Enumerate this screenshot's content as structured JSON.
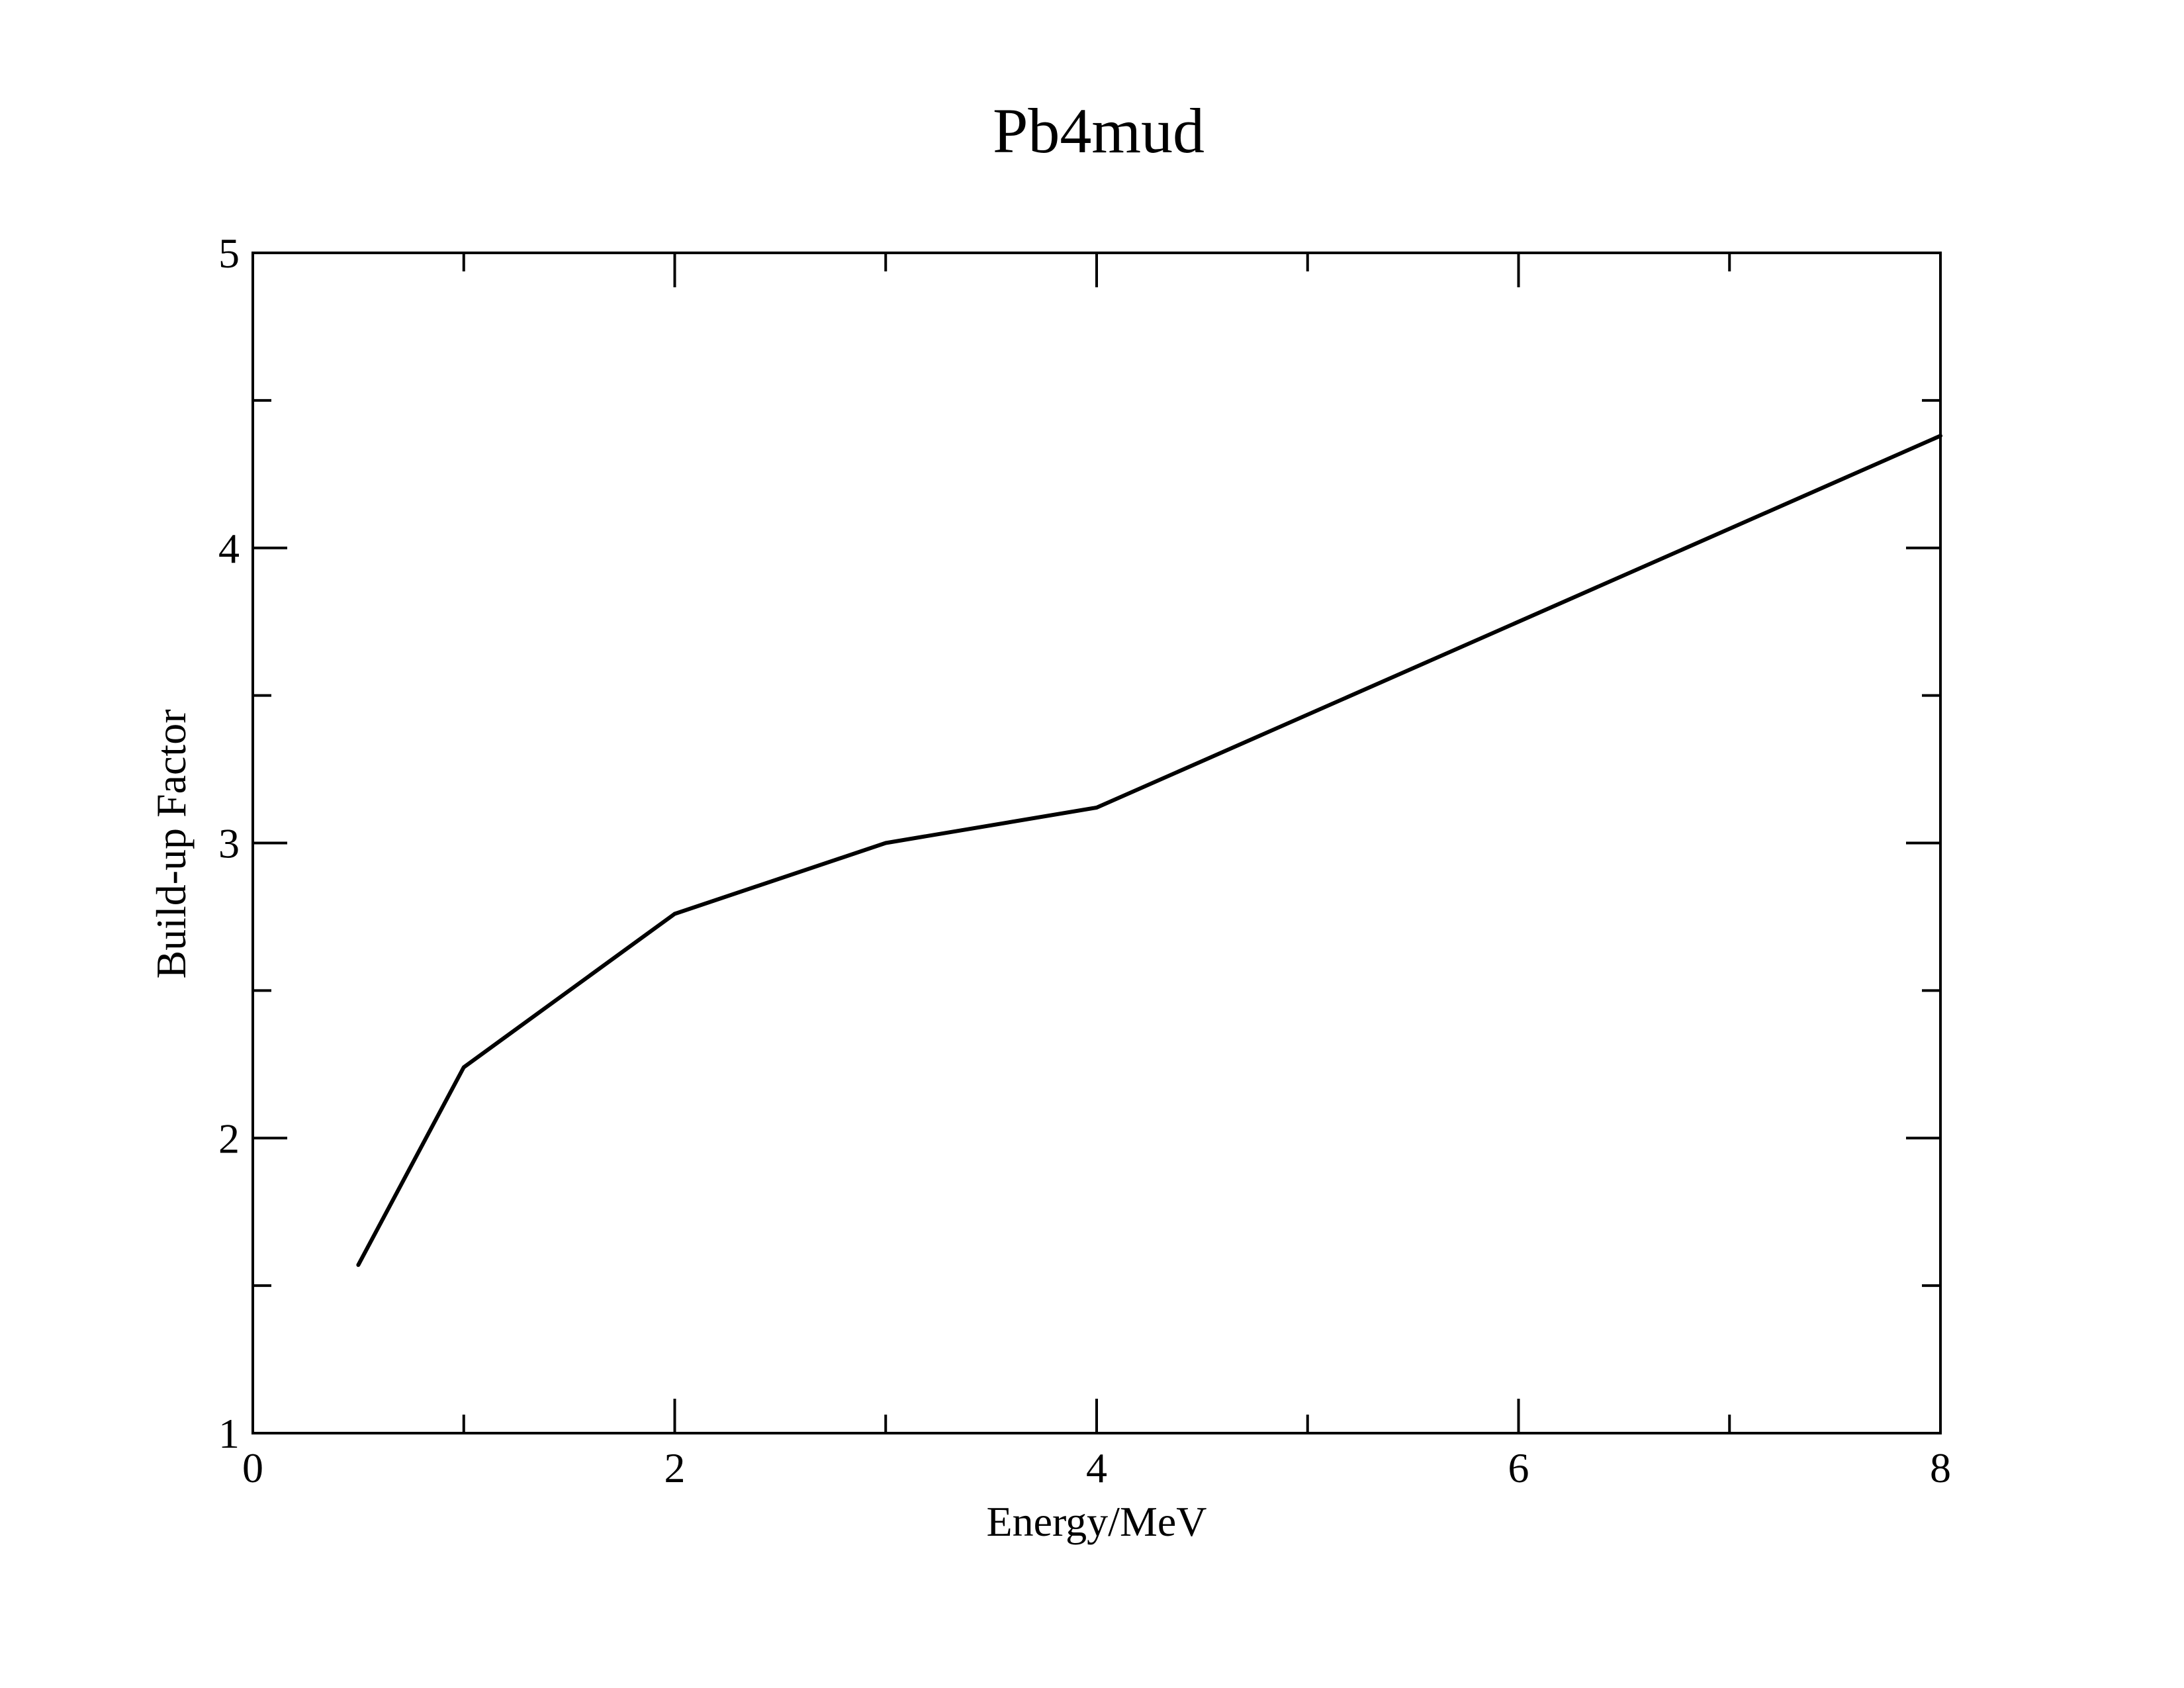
{
  "chart_data": {
    "type": "line",
    "title": "Pb4mud",
    "xlabel": "Energy/MeV",
    "ylabel": "Build-up Factor",
    "xlim": [
      0,
      8
    ],
    "ylim": [
      1,
      5
    ],
    "x_ticks": [
      "0",
      "2",
      "4",
      "6",
      "8"
    ],
    "y_ticks": [
      "1",
      "2",
      "3",
      "4",
      "5"
    ],
    "grid": false,
    "series": [
      {
        "x": [
          0.5,
          1,
          2,
          3,
          4,
          8
        ],
        "y": [
          1.57,
          2.24,
          2.76,
          3.0,
          3.12,
          4.38
        ],
        "color": "#000000"
      }
    ]
  }
}
